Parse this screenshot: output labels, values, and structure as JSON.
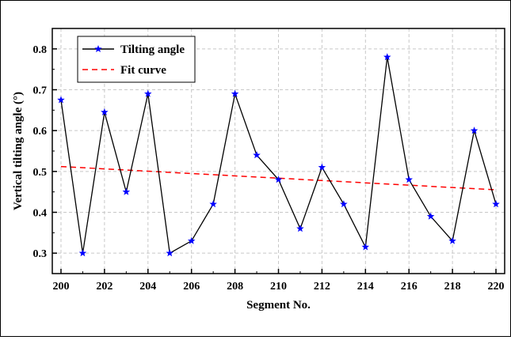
{
  "chart_data": {
    "type": "line",
    "xlabel": "Segment No.",
    "ylabel": "Vertical tilting angle (°)",
    "xlim": [
      199.6,
      220.4
    ],
    "ylim": [
      0.25,
      0.85
    ],
    "x_ticks": [
      200,
      202,
      204,
      206,
      208,
      210,
      212,
      214,
      216,
      218,
      220
    ],
    "y_ticks": [
      0.3,
      0.4,
      0.5,
      0.6,
      0.7,
      0.8
    ],
    "grid": true,
    "legend_position": "top-left",
    "series": [
      {
        "name": "Tilting angle",
        "style": "line-with-star-markers",
        "line_color": "#000000",
        "marker_color": "#0000ff",
        "x": [
          200,
          201,
          202,
          203,
          204,
          205,
          206,
          207,
          208,
          209,
          210,
          211,
          212,
          213,
          214,
          215,
          216,
          217,
          218,
          219,
          220
        ],
        "y": [
          0.675,
          0.3,
          0.645,
          0.45,
          0.69,
          0.3,
          0.33,
          0.42,
          0.69,
          0.54,
          0.48,
          0.36,
          0.51,
          0.42,
          0.315,
          0.78,
          0.48,
          0.39,
          0.33,
          0.6,
          0.42
        ]
      },
      {
        "name": "Fit curve",
        "style": "dashed-line",
        "line_color": "#ff0000",
        "x": [
          200,
          220
        ],
        "y": [
          0.512,
          0.455
        ]
      }
    ]
  }
}
